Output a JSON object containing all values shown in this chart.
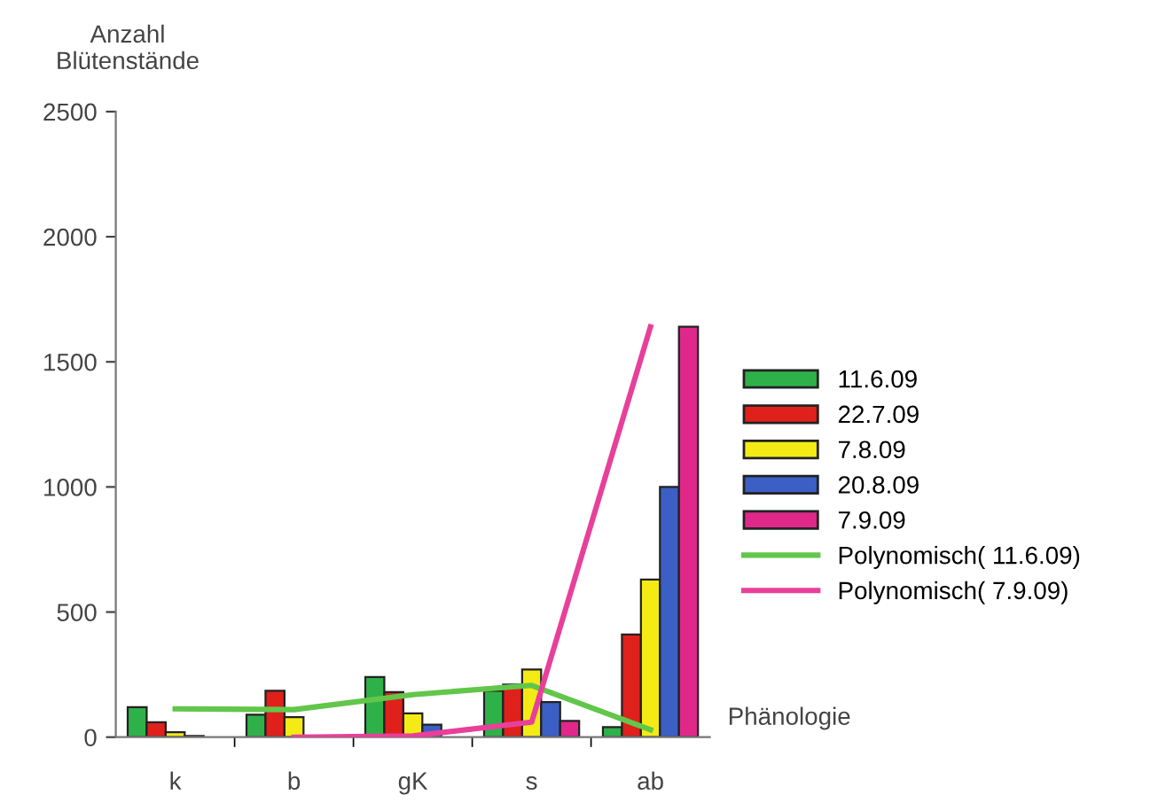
{
  "chart_data": {
    "type": "bar",
    "ylabel": "Anzahl\nBlütenstände",
    "xlabel": "Phänologie",
    "categories": [
      "k",
      "b",
      "gK",
      "s",
      "ab"
    ],
    "series": [
      {
        "name": "11.6.09",
        "color": "#2fb14a",
        "values": [
          120,
          90,
          240,
          185,
          40
        ]
      },
      {
        "name": "22.7.09",
        "color": "#e0201b",
        "values": [
          60,
          185,
          180,
          210,
          410
        ]
      },
      {
        "name": "7.8.09",
        "color": "#f5eb14",
        "values": [
          20,
          80,
          95,
          270,
          630
        ]
      },
      {
        "name": "20.8.09",
        "color": "#3b5fc4",
        "values": [
          5,
          0,
          50,
          140,
          1000
        ]
      },
      {
        "name": "7.9.09",
        "color": "#e0288a",
        "values": [
          0,
          0,
          0,
          65,
          1640
        ]
      },
      {
        "name": "Polynomisch( 11.6.09)",
        "type": "line",
        "color": "#62c64a",
        "values": [
          113,
          110,
          170,
          207,
          30
        ]
      },
      {
        "name": "Polynomisch( 7.9.09)",
        "type": "line",
        "color": "#e8409a",
        "values": [
          null,
          0,
          5,
          60,
          1640
        ]
      }
    ],
    "ylim": [
      0,
      2500
    ],
    "yticks": [
      0,
      500,
      1000,
      1500,
      2000,
      2500
    ],
    "grid": false,
    "legend": "right"
  }
}
